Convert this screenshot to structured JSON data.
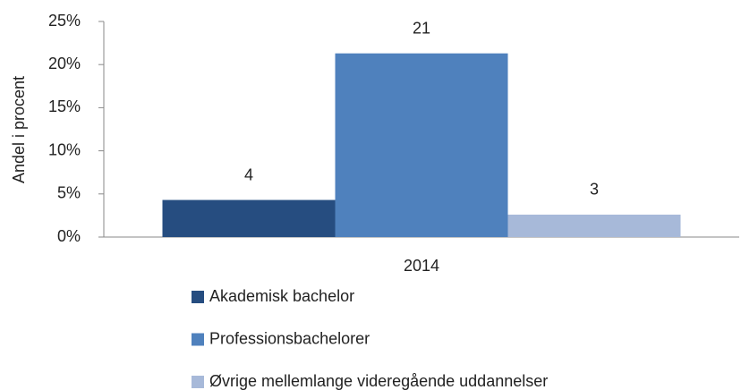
{
  "chart_data": {
    "type": "bar",
    "y_label": "Andel i procent",
    "categories": [
      "2014"
    ],
    "series": [
      {
        "name": "Akademisk bachelor",
        "color": "#264d80",
        "values": [
          4.3
        ],
        "value_labels": [
          "4"
        ]
      },
      {
        "name": "Professionsbachelorer",
        "color": "#4f81bd",
        "values": [
          21.3
        ],
        "value_labels": [
          "21"
        ]
      },
      {
        "name": "Øvrige mellemlange videregående uddannelser",
        "color": "#a7b9d9",
        "values": [
          2.6
        ],
        "value_labels": [
          "3"
        ]
      }
    ],
    "ylim": [
      0,
      25
    ],
    "yticks": [
      {
        "value": 0,
        "label": "0%"
      },
      {
        "value": 5,
        "label": "5%"
      },
      {
        "value": 10,
        "label": "10%"
      },
      {
        "value": 15,
        "label": "15%"
      },
      {
        "value": 20,
        "label": "20%"
      },
      {
        "value": 25,
        "label": "25%"
      }
    ],
    "legend": "bottom"
  }
}
